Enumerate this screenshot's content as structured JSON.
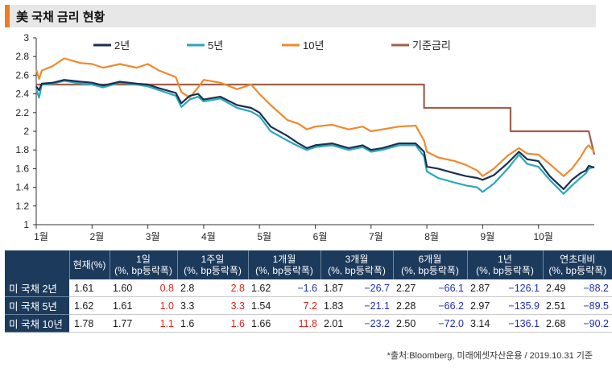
{
  "title": "美 국채 금리 현황",
  "chart_data": {
    "type": "line",
    "title": "美 국채 금리 현황",
    "xlabel": "",
    "ylabel": "",
    "ylim": [
      1,
      3
    ],
    "yticks": [
      1,
      1.2,
      1.4,
      1.6,
      1.8,
      2,
      2.2,
      2.4,
      2.6,
      2.8,
      3
    ],
    "ytick_labels": [
      "1",
      "1.2",
      "1.4",
      "1.6",
      "1.8",
      "2",
      "2.2",
      "2.4",
      "2.6",
      "2.8",
      "3"
    ],
    "xlim": [
      0,
      10
    ],
    "x_tick_positions": [
      0,
      1,
      2,
      3,
      4,
      5,
      6,
      7,
      8,
      9
    ],
    "x_tick_labels": [
      "1월",
      "2월",
      "3월",
      "4월",
      "5월",
      "6월",
      "7월",
      "8월",
      "9월",
      "10월"
    ],
    "legend": "top",
    "series": [
      {
        "name": "2년",
        "color": "#1b2f4f",
        "x": [
          0,
          0.05,
          0.1,
          0.3,
          0.5,
          0.8,
          1.0,
          1.2,
          1.5,
          1.8,
          2.0,
          2.2,
          2.5,
          2.6,
          2.75,
          2.9,
          3.0,
          3.3,
          3.6,
          3.85,
          4.0,
          4.2,
          4.5,
          4.7,
          4.85,
          5.0,
          5.3,
          5.6,
          5.85,
          6.0,
          6.2,
          6.5,
          6.8,
          6.95,
          7.0,
          7.2,
          7.5,
          7.7,
          7.9,
          8.0,
          8.2,
          8.45,
          8.65,
          8.8,
          9.0,
          9.2,
          9.45,
          9.6,
          9.75,
          9.85,
          9.9,
          10.0
        ],
        "y": [
          2.48,
          2.44,
          2.51,
          2.52,
          2.55,
          2.53,
          2.52,
          2.49,
          2.53,
          2.51,
          2.5,
          2.46,
          2.41,
          2.3,
          2.38,
          2.4,
          2.34,
          2.37,
          2.28,
          2.25,
          2.2,
          2.05,
          1.95,
          1.87,
          1.82,
          1.85,
          1.87,
          1.82,
          1.85,
          1.8,
          1.82,
          1.87,
          1.87,
          1.78,
          1.62,
          1.6,
          1.55,
          1.52,
          1.5,
          1.48,
          1.53,
          1.66,
          1.78,
          1.7,
          1.68,
          1.52,
          1.38,
          1.48,
          1.55,
          1.58,
          1.63,
          1.61
        ]
      },
      {
        "name": "5년",
        "color": "#2aa7be",
        "x": [
          0,
          0.05,
          0.1,
          0.3,
          0.5,
          0.8,
          1.0,
          1.2,
          1.5,
          1.8,
          2.0,
          2.2,
          2.5,
          2.6,
          2.75,
          2.9,
          3.0,
          3.3,
          3.6,
          3.85,
          4.0,
          4.2,
          4.5,
          4.7,
          4.85,
          5.0,
          5.3,
          5.6,
          5.85,
          6.0,
          6.2,
          6.5,
          6.8,
          6.95,
          7.0,
          7.2,
          7.5,
          7.7,
          7.9,
          8.0,
          8.2,
          8.45,
          8.65,
          8.8,
          9.0,
          9.2,
          9.45,
          9.6,
          9.75,
          9.85,
          9.9,
          10.0
        ],
        "y": [
          2.45,
          2.36,
          2.5,
          2.51,
          2.54,
          2.51,
          2.5,
          2.47,
          2.52,
          2.5,
          2.48,
          2.44,
          2.38,
          2.26,
          2.34,
          2.37,
          2.32,
          2.35,
          2.25,
          2.21,
          2.16,
          2.0,
          1.9,
          1.84,
          1.8,
          1.83,
          1.85,
          1.8,
          1.83,
          1.78,
          1.8,
          1.85,
          1.85,
          1.73,
          1.57,
          1.5,
          1.45,
          1.42,
          1.4,
          1.35,
          1.44,
          1.6,
          1.75,
          1.65,
          1.62,
          1.48,
          1.33,
          1.42,
          1.5,
          1.55,
          1.6,
          1.62
        ]
      },
      {
        "name": "10년",
        "color": "#ee8a2e",
        "x": [
          0,
          0.05,
          0.1,
          0.3,
          0.5,
          0.8,
          1.0,
          1.2,
          1.5,
          1.8,
          2.0,
          2.2,
          2.5,
          2.6,
          2.75,
          2.9,
          3.0,
          3.3,
          3.6,
          3.85,
          4.0,
          4.2,
          4.5,
          4.7,
          4.85,
          5.0,
          5.3,
          5.6,
          5.85,
          6.0,
          6.2,
          6.5,
          6.8,
          6.95,
          7.0,
          7.2,
          7.5,
          7.7,
          7.9,
          8.0,
          8.2,
          8.45,
          8.65,
          8.8,
          9.0,
          9.2,
          9.45,
          9.6,
          9.75,
          9.85,
          9.9,
          10.0
        ],
        "y": [
          2.66,
          2.56,
          2.65,
          2.7,
          2.78,
          2.73,
          2.72,
          2.68,
          2.72,
          2.68,
          2.72,
          2.65,
          2.58,
          2.42,
          2.36,
          2.47,
          2.55,
          2.52,
          2.45,
          2.5,
          2.4,
          2.28,
          2.12,
          2.08,
          2.02,
          2.05,
          2.07,
          2.02,
          2.05,
          2.0,
          2.02,
          2.05,
          2.06,
          1.9,
          1.78,
          1.72,
          1.68,
          1.64,
          1.58,
          1.52,
          1.6,
          1.74,
          1.82,
          1.76,
          1.75,
          1.65,
          1.52,
          1.6,
          1.72,
          1.82,
          1.85,
          1.78
        ]
      },
      {
        "name": "기준금리",
        "color": "#a05f4a",
        "x": [
          0,
          6.95,
          6.95,
          8.5,
          8.5,
          9.9,
          9.9,
          10.0
        ],
        "y": [
          2.5,
          2.5,
          2.25,
          2.25,
          2.0,
          2.0,
          2.0,
          1.75
        ]
      }
    ]
  },
  "table": {
    "headers": [
      {
        "line1": "현재(%)",
        "line2": ""
      },
      {
        "line1": "1일",
        "line2": "(%, bp등락폭)"
      },
      {
        "line1": "1주일",
        "line2": "(%, bp등락폭)"
      },
      {
        "line1": "1개월",
        "line2": "(%, bp등락폭)"
      },
      {
        "line1": "3개월",
        "line2": "(%, bp등락폭)"
      },
      {
        "line1": "6개월",
        "line2": "(%, bp등락폭)"
      },
      {
        "line1": "1년",
        "line2": "(%, bp등락폭)"
      },
      {
        "line1": "연초대비",
        "line2": "(%, bp등락폭)"
      }
    ],
    "rows": [
      {
        "label": "미 국채 2년",
        "current": "1.61",
        "cells": [
          [
            "1.60",
            "0.8"
          ],
          [
            "2.8",
            "2.8"
          ],
          [
            "1.62",
            "−1.6"
          ],
          [
            "1.87",
            "−26.7"
          ],
          [
            "2.27",
            "−66.1"
          ],
          [
            "2.87",
            "−126.1"
          ],
          [
            "2.49",
            "−88.2"
          ]
        ]
      },
      {
        "label": "미 국채 5년",
        "current": "1.62",
        "cells": [
          [
            "1.61",
            "1.0"
          ],
          [
            "3.3",
            "3.3"
          ],
          [
            "1.54",
            "7.2"
          ],
          [
            "1.83",
            "−21.1"
          ],
          [
            "2.28",
            "−66.2"
          ],
          [
            "2.97",
            "−135.9"
          ],
          [
            "2.51",
            "−89.5"
          ]
        ]
      },
      {
        "label": "미 국채 10년",
        "current": "1.78",
        "cells": [
          [
            "1.77",
            "1.1"
          ],
          [
            "1.6",
            "1.6"
          ],
          [
            "1.66",
            "11.8"
          ],
          [
            "2.01",
            "−23.2"
          ],
          [
            "2.50",
            "−72.0"
          ],
          [
            "3.14",
            "−136.1"
          ],
          [
            "2.68",
            "−90.2"
          ]
        ]
      }
    ]
  },
  "source": "*출처:Bloomberg, 미래에셋자산운용 / 2019.10.31 기준"
}
